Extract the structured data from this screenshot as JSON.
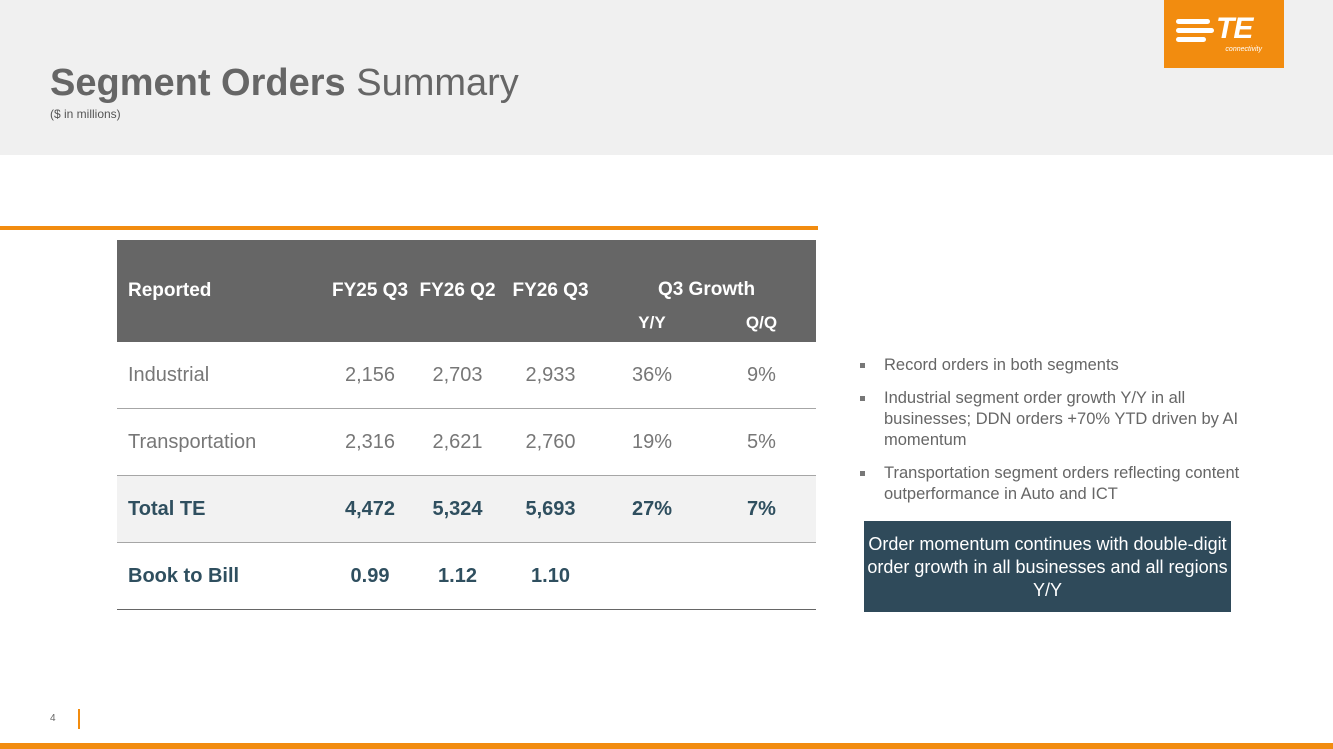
{
  "header": {
    "title_bold": "Segment Orders",
    "title_rest": "Summary",
    "subtitle": "($ in millions)",
    "logo": {
      "mark": "TE",
      "sub": "connectivity",
      "color": "#f28c0f"
    }
  },
  "table": {
    "header": {
      "reported": "Reported",
      "col1": "FY25 Q3",
      "col2": "FY26 Q2",
      "col3": "FY26 Q3",
      "growth": "Q3 Growth",
      "yy": "Y/Y",
      "qq": "Q/Q"
    },
    "rows": [
      {
        "label": "Industrial",
        "c1": "2,156",
        "c2": "2,703",
        "c3": "2,933",
        "yy": "36%",
        "qq": "9%"
      },
      {
        "label": "Transportation",
        "c1": "2,316",
        "c2": "2,621",
        "c3": "2,760",
        "yy": "19%",
        "qq": "5%"
      },
      {
        "label": "Total TE",
        "c1": "4,472",
        "c2": "5,324",
        "c3": "5,693",
        "yy": "27%",
        "qq": "7%"
      },
      {
        "label": "Book to Bill",
        "c1": "0.99",
        "c2": "1.12",
        "c3": "1.10",
        "yy": "",
        "qq": ""
      }
    ]
  },
  "bullets": [
    "Record orders in both segments",
    "Industrial segment order growth Y/Y in all businesses; DDN orders +70% YTD driven by AI momentum",
    "Transportation segment orders reflecting content outperformance in Auto and ICT"
  ],
  "callout": "Order momentum continues with double-digit order growth in all businesses and all regions Y/Y",
  "footer": {
    "page_number": "4"
  }
}
